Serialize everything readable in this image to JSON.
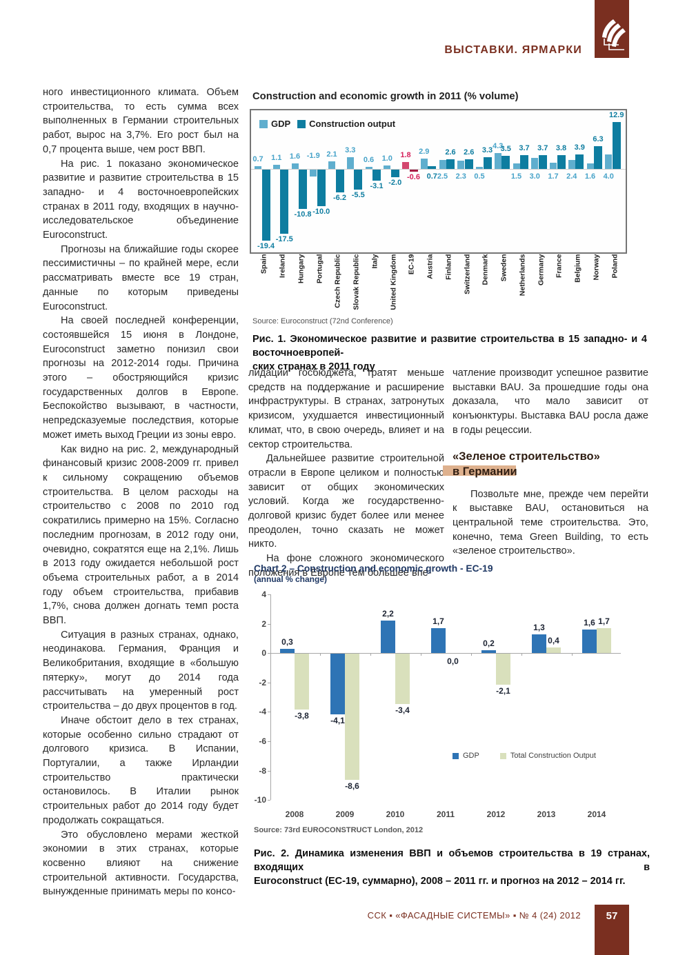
{
  "header": {
    "section_title": "ВЫСТАВКИ. ЯРМАРКИ"
  },
  "colors": {
    "accent_maroon": "#7A2F20",
    "heading_accent_bar": "#DEB18E"
  },
  "columns": {
    "left": [
      "ного инвестиционного климата. Объем строительства, то есть сумма всех выполненных в Германии строительных работ, вырос на 3,7%. Его рост был на 0,7 процента выше, чем рост ВВП.",
      "На рис. 1 показано экономическое развитие и развитие строительства в 15 западно- и 4 восточноевропейских странах в 2011 году, входящих в научно-исследовательское объединение Euroconstruct.",
      "Прогнозы на ближайшие годы скорее пессимистичны – по крайней мере, если рассматривать вместе все 19 стран, данные по которым приведены Euroconstruct.",
      "На своей последней конференции, состоявшейся 15 июня в Лондоне, Euroconstruct заметно понизил свои прогнозы на 2012-2014 годы. Причина этого – обостряющийся кризис государственных долгов в Европе. Беспокойство вызывают, в частности, непредсказуемые последствия, которые может иметь выход Греции из зоны евро.",
      "Как видно на рис. 2, международный финансовый кризис 2008-2009 гг. привел к сильному сокращению объемов строительства. В целом расходы на строительство с 2008 по 2010 год сократились примерно на 15%. Согласно последним прогнозам, в 2012 году они, очевидно, сократятся еще на 2,1%. Лишь в 2013 году ожидается небольшой рост объема строительных работ, а в 2014 году объем строительства, прибавив 1,7%, снова должен догнать темп роста ВВП.",
      "Ситуация в разных странах, однако, неодинакова. Германия, Франция и Великобритания, входящие в «большую пятерку», могут до 2014 года рассчитывать на умеренный рост строительства – до двух процентов в год.",
      "Иначе обстоит дело в тех странах, которые особенно сильно страдают от долгового кризиса. В Испании, Португалии, а также Ирландии строительство практически остановилось. В Италии рынок строительных работ до 2014 году будет продолжать сокращаться.",
      "Это обусловлено мерами жесткой экономии в этих странах, которые косвенно влияют на снижение строительной активности. Государства, вынужденные принимать меры по консо-"
    ],
    "middle": [
      "лидации госбюджета, тратят меньше средств на поддержание и расширение инфраструктуры. В странах, затронутых кризисом, ухудшается инвестиционный климат, что, в свою очередь, влияет и на сектор строительства.",
      "Дальнейшее развитие строительной отрасли в Европе целиком и полностью зависит от общих экономических условий. Когда же государственно-долговой кризис будет более или менее преодолен, точно сказать не может никто.",
      "На фоне сложного экономического положения в Европе тем большее впе-"
    ],
    "right": [
      "чатление производит успешное развитие выставки BAU. За прошедшие годы она доказала, что мало зависит от конъюнктуры. Выставка BAU росла даже в годы рецессии.",
      "Позвольте мне, прежде чем перейти к выставке BAU, остановиться на центральной теме строительства. Это, конечно, тема Green Building, то есть «зеленое строительство»."
    ],
    "right_heading": {
      "line1": "«Зеленое строительство»",
      "line2": "в Германии"
    }
  },
  "chart_data": [
    {
      "type": "bar",
      "title": "Construction and economic growth in 2011 (% volume)",
      "categories": [
        "Spain",
        "Ireland",
        "Hungary",
        "Portugal",
        "Czech Republic",
        "Slovak Republic",
        "Italy",
        "United Kingdom",
        "EC-19",
        "Austria",
        "Finland",
        "Switzerland",
        "Denmark",
        "Sweden",
        "Netherlands",
        "Germany",
        "France",
        "Belgium",
        "Norway",
        "Poland"
      ],
      "series": [
        {
          "name": "GDP",
          "values": [
            0.7,
            1.1,
            1.6,
            -1.9,
            2.1,
            3.3,
            0.6,
            1.0,
            1.8,
            2.9,
            2.5,
            2.3,
            0.5,
            4.3,
            1.5,
            3.0,
            1.7,
            2.4,
            1.6,
            4.0
          ]
        },
        {
          "name": "Construction output",
          "values": [
            -19.4,
            -17.5,
            -10.8,
            -10.0,
            -6.2,
            -5.5,
            -3.1,
            -2.0,
            -0.6,
            0.7,
            2.6,
            2.6,
            3.3,
            3.5,
            3.7,
            3.7,
            3.8,
            3.9,
            6.3,
            12.9
          ]
        }
      ],
      "highlight_category": "EC-19",
      "ylim": [
        -19.4,
        12.9
      ],
      "grid": false,
      "legend_position": "top-left",
      "colors": {
        "gdp": "#5FAECE",
        "construction": "#0E7DA0",
        "highlight_gdp": "#D3476E",
        "highlight_construction": "#A71D45",
        "gdp_label": "#47A3C9",
        "construction_label": "#0E7DA0",
        "highlight_label": "#D5215B"
      }
    },
    {
      "type": "bar",
      "title": "Chart 2 – Construction and economic growth - EC-19",
      "subtitle": "(annual % change)",
      "categories": [
        "2008",
        "2009",
        "2010",
        "2011",
        "2012",
        "2013",
        "2014"
      ],
      "series": [
        {
          "name": "GDP",
          "values": [
            0.3,
            -4.1,
            2.2,
            1.7,
            0.2,
            1.3,
            1.6
          ]
        },
        {
          "name": "Total Construction Output",
          "values": [
            -3.8,
            -8.6,
            -3.4,
            0.0,
            -2.1,
            0.4,
            1.7
          ]
        }
      ],
      "ylim": [
        -10,
        4
      ],
      "yticks": [
        4,
        2,
        0,
        -2,
        -4,
        -6,
        -8,
        -10
      ],
      "grid": false,
      "legend_position": "inside-right",
      "colors": {
        "gdp": "#2E74B5",
        "construction": "#D9E0BC",
        "label": "#1d2433",
        "axis": "#a6a6a6"
      }
    }
  ],
  "figure1": {
    "source": "Source: Euroconstruct (72nd Conference)",
    "caption_line1": "Рис. 1. Экономическое развитие и развитие строительства в 15 западно- и 4 восточноевропей-",
    "caption_line2": "ских странах в 2011 году"
  },
  "figure2": {
    "source": "Source: 73rd EUROCONSTRUCT London, 2012",
    "caption_line1": "Рис. 2. Динамика изменения ВВП и объемов строительства в 19 странах, входящих в",
    "caption_line2": "Euroconstruct (EC-19, суммарно), 2008 – 2011 гг. и прогноз на 2012 – 2014 гг."
  },
  "footer": {
    "journal_line": "ССК ▪ «ФАСАДНЫЕ СИСТЕМЫ» ▪ № 4 (24) 2012",
    "page_number": "57"
  }
}
